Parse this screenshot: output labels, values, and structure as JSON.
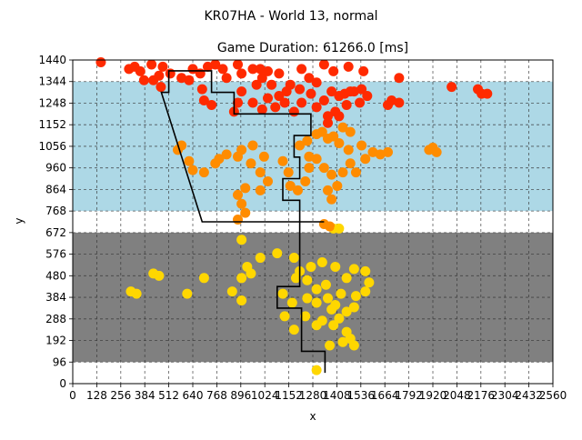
{
  "suptitle": "KR07HA - World 13, normal",
  "chart_data": {
    "type": "scatter",
    "title": "Game Duration: 61266.0 [ms]",
    "xlabel": "x",
    "ylabel": "y",
    "xlim": [
      0,
      2560
    ],
    "ylim": [
      0,
      1440
    ],
    "grid": true,
    "grid_style": "dashed",
    "xticks": [
      0,
      128,
      256,
      384,
      512,
      640,
      768,
      896,
      1024,
      1152,
      1280,
      1408,
      1536,
      1664,
      1792,
      1920,
      2048,
      2176,
      2304,
      2432,
      2560
    ],
    "yticks": [
      0,
      96,
      192,
      288,
      384,
      480,
      576,
      672,
      768,
      864,
      960,
      1056,
      1152,
      1248,
      1344,
      1440
    ],
    "background_bands": [
      {
        "y0": 96,
        "y1": 672,
        "color": "#808080"
      },
      {
        "y0": 768,
        "y1": 1344,
        "color": "#add8e6"
      }
    ],
    "colors": {
      "low": "#ffd700",
      "mid": "#ff8c00",
      "high": "#ff2a00"
    },
    "path": [
      [
        1345,
        48
      ],
      [
        1345,
        144
      ],
      [
        1220,
        144
      ],
      [
        1220,
        336
      ],
      [
        1090,
        336
      ],
      [
        1090,
        432
      ],
      [
        1210,
        432
      ],
      [
        1210,
        816
      ],
      [
        1120,
        816
      ],
      [
        1120,
        912
      ],
      [
        1210,
        912
      ],
      [
        1210,
        1008
      ],
      [
        1180,
        1008
      ],
      [
        1180,
        1104
      ],
      [
        1270,
        1104
      ],
      [
        1270,
        1200
      ],
      [
        860,
        1200
      ],
      [
        860,
        1296
      ],
      [
        740,
        1296
      ],
      [
        740,
        1392
      ],
      [
        512,
        1392
      ],
      [
        512,
        1296
      ],
      [
        472,
        1296
      ],
      [
        690,
        720
      ],
      [
        1340,
        720
      ]
    ],
    "points": [
      [
        1300,
        60
      ],
      [
        1370,
        170
      ],
      [
        1440,
        185
      ],
      [
        1480,
        200
      ],
      [
        1500,
        170
      ],
      [
        1460,
        230
      ],
      [
        1390,
        260
      ],
      [
        1330,
        280
      ],
      [
        1420,
        290
      ],
      [
        1460,
        320
      ],
      [
        1400,
        350
      ],
      [
        1500,
        340
      ],
      [
        1360,
        380
      ],
      [
        1430,
        400
      ],
      [
        1510,
        390
      ],
      [
        1560,
        410
      ],
      [
        1300,
        420
      ],
      [
        1350,
        440
      ],
      [
        1250,
        460
      ],
      [
        1190,
        470
      ],
      [
        1210,
        500
      ],
      [
        1270,
        520
      ],
      [
        1330,
        540
      ],
      [
        1400,
        520
      ],
      [
        1460,
        470
      ],
      [
        1580,
        450
      ],
      [
        1560,
        500
      ],
      [
        1500,
        510
      ],
      [
        1180,
        560
      ],
      [
        1090,
        580
      ],
      [
        1000,
        560
      ],
      [
        930,
        520
      ],
      [
        950,
        490
      ],
      [
        900,
        470
      ],
      [
        1120,
        400
      ],
      [
        1170,
        360
      ],
      [
        1250,
        380
      ],
      [
        1300,
        360
      ],
      [
        1380,
        330
      ],
      [
        1240,
        300
      ],
      [
        1300,
        260
      ],
      [
        1180,
        240
      ],
      [
        1130,
        300
      ],
      [
        430,
        490
      ],
      [
        460,
        480
      ],
      [
        310,
        410
      ],
      [
        340,
        400
      ],
      [
        610,
        400
      ],
      [
        700,
        470
      ],
      [
        850,
        410
      ],
      [
        900,
        370
      ],
      [
        900,
        640
      ],
      [
        1390,
        690
      ],
      [
        1370,
        700
      ],
      [
        1340,
        710
      ],
      [
        1420,
        690
      ],
      [
        880,
        730
      ],
      [
        920,
        760
      ],
      [
        900,
        800
      ],
      [
        880,
        840
      ],
      [
        920,
        870
      ],
      [
        1000,
        860
      ],
      [
        1040,
        900
      ],
      [
        1000,
        940
      ],
      [
        950,
        980
      ],
      [
        880,
        1010
      ],
      [
        820,
        1020
      ],
      [
        780,
        1000
      ],
      [
        760,
        980
      ],
      [
        700,
        940
      ],
      [
        640,
        950
      ],
      [
        620,
        990
      ],
      [
        560,
        1040
      ],
      [
        580,
        1060
      ],
      [
        900,
        1040
      ],
      [
        960,
        1060
      ],
      [
        1020,
        1010
      ],
      [
        1120,
        990
      ],
      [
        1150,
        940
      ],
      [
        1160,
        880
      ],
      [
        1200,
        860
      ],
      [
        1240,
        900
      ],
      [
        1260,
        960
      ],
      [
        1260,
        1010
      ],
      [
        1300,
        1000
      ],
      [
        1340,
        960
      ],
      [
        1380,
        930
      ],
      [
        1410,
        880
      ],
      [
        1380,
        820
      ],
      [
        1360,
        860
      ],
      [
        1440,
        940
      ],
      [
        1480,
        980
      ],
      [
        1510,
        940
      ],
      [
        1560,
        1000
      ],
      [
        1600,
        1030
      ],
      [
        1640,
        1020
      ],
      [
        1680,
        1030
      ],
      [
        1540,
        1060
      ],
      [
        1470,
        1040
      ],
      [
        1420,
        1070
      ],
      [
        1360,
        1090
      ],
      [
        1300,
        1110
      ],
      [
        1250,
        1080
      ],
      [
        1210,
        1060
      ],
      [
        1900,
        1040
      ],
      [
        1940,
        1030
      ],
      [
        1920,
        1050
      ],
      [
        1080,
        1230
      ],
      [
        1100,
        1280
      ],
      [
        1060,
        1330
      ],
      [
        1010,
        1360
      ],
      [
        980,
        1330
      ],
      [
        900,
        1300
      ],
      [
        880,
        1250
      ],
      [
        860,
        1210
      ],
      [
        1140,
        1300
      ],
      [
        1180,
        1210
      ],
      [
        1220,
        1250
      ],
      [
        1300,
        1230
      ],
      [
        1340,
        1260
      ],
      [
        1380,
        1300
      ],
      [
        1420,
        1280
      ],
      [
        1460,
        1240
      ],
      [
        1480,
        1300
      ],
      [
        1540,
        1310
      ],
      [
        1570,
        1280
      ],
      [
        1530,
        1250
      ],
      [
        1450,
        1290
      ],
      [
        1400,
        1210
      ],
      [
        1360,
        1190
      ],
      [
        1420,
        1190
      ],
      [
        1360,
        1160
      ],
      [
        1330,
        1120
      ],
      [
        1390,
        1100
      ],
      [
        1440,
        1140
      ],
      [
        1480,
        1120
      ],
      [
        1500,
        1300
      ],
      [
        1700,
        1260
      ],
      [
        1740,
        1250
      ],
      [
        1680,
        1240
      ],
      [
        2020,
        1320
      ],
      [
        2180,
        1290
      ],
      [
        2160,
        1310
      ],
      [
        2210,
        1290
      ],
      [
        1260,
        1360
      ],
      [
        1300,
        1340
      ],
      [
        1220,
        1400
      ],
      [
        1390,
        1390
      ],
      [
        1470,
        1410
      ],
      [
        1550,
        1390
      ],
      [
        1740,
        1360
      ],
      [
        700,
        1260
      ],
      [
        740,
        1240
      ],
      [
        690,
        1310
      ],
      [
        620,
        1350
      ],
      [
        580,
        1360
      ],
      [
        520,
        1380
      ],
      [
        460,
        1370
      ],
      [
        430,
        1350
      ],
      [
        380,
        1350
      ],
      [
        360,
        1390
      ],
      [
        300,
        1400
      ],
      [
        330,
        1410
      ],
      [
        420,
        1420
      ],
      [
        480,
        1410
      ],
      [
        640,
        1400
      ],
      [
        680,
        1380
      ],
      [
        720,
        1410
      ],
      [
        760,
        1420
      ],
      [
        800,
        1400
      ],
      [
        820,
        1360
      ],
      [
        880,
        1420
      ],
      [
        900,
        1380
      ],
      [
        960,
        1400
      ],
      [
        1000,
        1400
      ],
      [
        1040,
        1390
      ],
      [
        1100,
        1380
      ],
      [
        1160,
        1330
      ],
      [
        1210,
        1310
      ],
      [
        1270,
        1290
      ],
      [
        1130,
        1250
      ],
      [
        1040,
        1270
      ],
      [
        960,
        1250
      ],
      [
        1010,
        1220
      ],
      [
        150,
        1430
      ],
      [
        470,
        1320
      ],
      [
        1340,
        1420
      ]
    ]
  }
}
